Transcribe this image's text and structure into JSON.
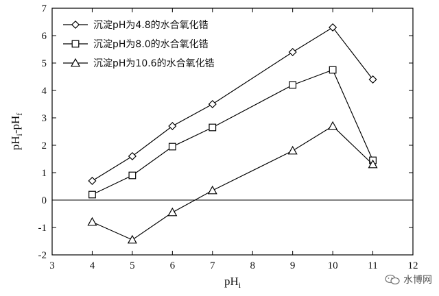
{
  "chart_data": {
    "type": "line",
    "title": "",
    "xlabel": "pH",
    "xlabel_sub": "i",
    "ylabel": "pH",
    "ylabel_parts": [
      {
        "text": "pH",
        "sub": "i"
      },
      {
        "text": "-pH",
        "sub": "f"
      }
    ],
    "xlim": [
      3,
      12
    ],
    "ylim": [
      -2,
      7
    ],
    "xticks": [
      3,
      4,
      5,
      6,
      7,
      8,
      9,
      10,
      11,
      12
    ],
    "yticks": [
      -2,
      -1,
      0,
      1,
      2,
      3,
      4,
      5,
      6,
      7
    ],
    "zero_line": true,
    "grid": false,
    "legend": "top-left",
    "series": [
      {
        "name": "沉淀pH为4.8的水合氧化锆",
        "marker": "diamond",
        "x": [
          4,
          5,
          6,
          7,
          9,
          10,
          11
        ],
        "y": [
          0.7,
          1.6,
          2.7,
          3.5,
          5.4,
          6.3,
          4.4
        ]
      },
      {
        "name": "沉淀pH为8.0的水合氧化锆",
        "marker": "square",
        "x": [
          4,
          5,
          6,
          7,
          9,
          10,
          11
        ],
        "y": [
          0.2,
          0.9,
          1.95,
          2.65,
          4.2,
          4.75,
          1.45
        ]
      },
      {
        "name": "沉淀pH为10.6的水合氧化锆",
        "marker": "triangle",
        "x": [
          4,
          5,
          6,
          7,
          9,
          10,
          11
        ],
        "y": [
          -0.8,
          -1.45,
          -0.45,
          0.35,
          1.8,
          2.7,
          1.3
        ]
      }
    ]
  },
  "watermark": {
    "text": "水博网",
    "icon": "wechat-icon"
  }
}
